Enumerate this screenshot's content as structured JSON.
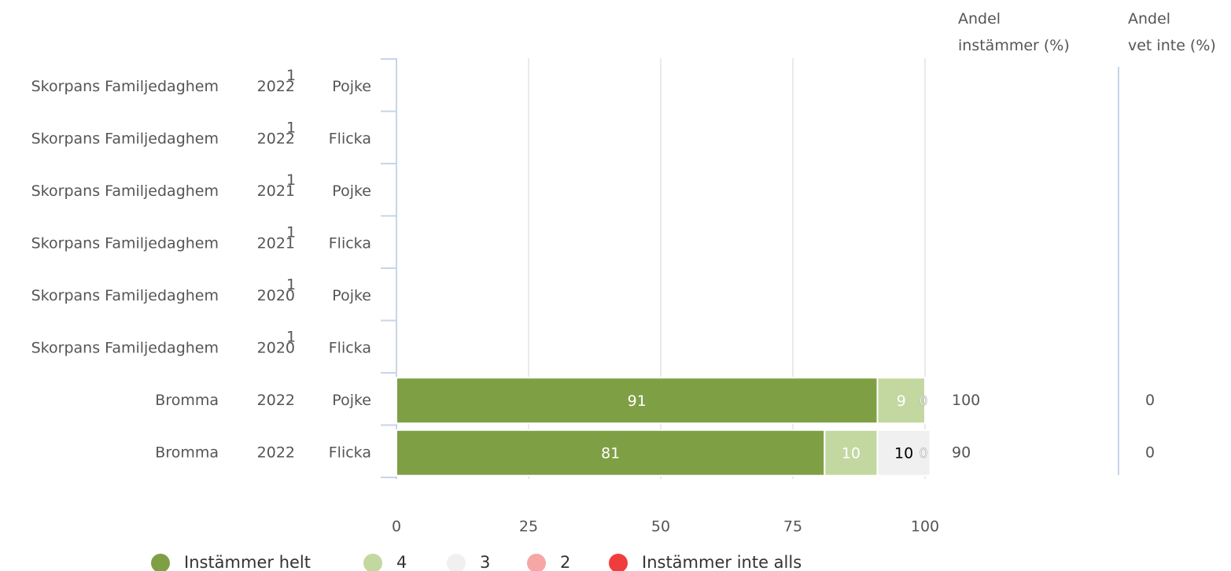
{
  "chart_data": {
    "type": "bar",
    "orientation": "horizontal",
    "stacked": true,
    "title": "",
    "xlabel": "",
    "ylabel": "",
    "xlim": [
      0,
      100
    ],
    "x_ticks": [
      "0",
      "25",
      "50",
      "75",
      "100"
    ],
    "grid": true,
    "legend_position": "bottom",
    "column_headers": {
      "instammer_line1": "Andel",
      "instammer_line2": "instämmer (%)",
      "vet_inte_line1": "Andel",
      "vet_inte_line2": "vet inte (%)"
    },
    "rows": [
      {
        "unit": "Skorpans Familjedaghem",
        "year": "2022",
        "footnote": "1",
        "gender": "Pojke",
        "values": null,
        "andel_instammer": "",
        "andel_vet_inte": ""
      },
      {
        "unit": "Skorpans Familjedaghem",
        "year": "2022",
        "footnote": "1",
        "gender": "Flicka",
        "values": null,
        "andel_instammer": "",
        "andel_vet_inte": ""
      },
      {
        "unit": "Skorpans Familjedaghem",
        "year": "2021",
        "footnote": "1",
        "gender": "Pojke",
        "values": null,
        "andel_instammer": "",
        "andel_vet_inte": ""
      },
      {
        "unit": "Skorpans Familjedaghem",
        "year": "2021",
        "footnote": "1",
        "gender": "Flicka",
        "values": null,
        "andel_instammer": "",
        "andel_vet_inte": ""
      },
      {
        "unit": "Skorpans Familjedaghem",
        "year": "2020",
        "footnote": "1",
        "gender": "Pojke",
        "values": null,
        "andel_instammer": "",
        "andel_vet_inte": ""
      },
      {
        "unit": "Skorpans Familjedaghem",
        "year": "2020",
        "footnote": "1",
        "gender": "Flicka",
        "values": null,
        "andel_instammer": "",
        "andel_vet_inte": ""
      },
      {
        "unit": "Bromma",
        "year": "2022",
        "footnote": "",
        "gender": "Pojke",
        "values": [
          91,
          9,
          0,
          0,
          0
        ],
        "andel_instammer": "100",
        "andel_vet_inte": "0"
      },
      {
        "unit": "Bromma",
        "year": "2022",
        "footnote": "",
        "gender": "Flicka",
        "values": [
          81,
          10,
          10,
          0,
          0
        ],
        "andel_instammer": "90",
        "andel_vet_inte": "0"
      }
    ],
    "series": [
      {
        "name": "Instämmer helt",
        "color": "#7f9f45",
        "label_color": "#ffffff"
      },
      {
        "name": "4",
        "color": "#c2d8a0",
        "label_color": "#ffffff"
      },
      {
        "name": "3",
        "color": "#f0f0f0",
        "label_color": "#000000"
      },
      {
        "name": "2",
        "color": "#f7a6a6",
        "label_color": "#cccccc"
      },
      {
        "name": "Instämmer inte alls",
        "color": "#f03c3c",
        "label_color": "#ffffff"
      }
    ]
  }
}
